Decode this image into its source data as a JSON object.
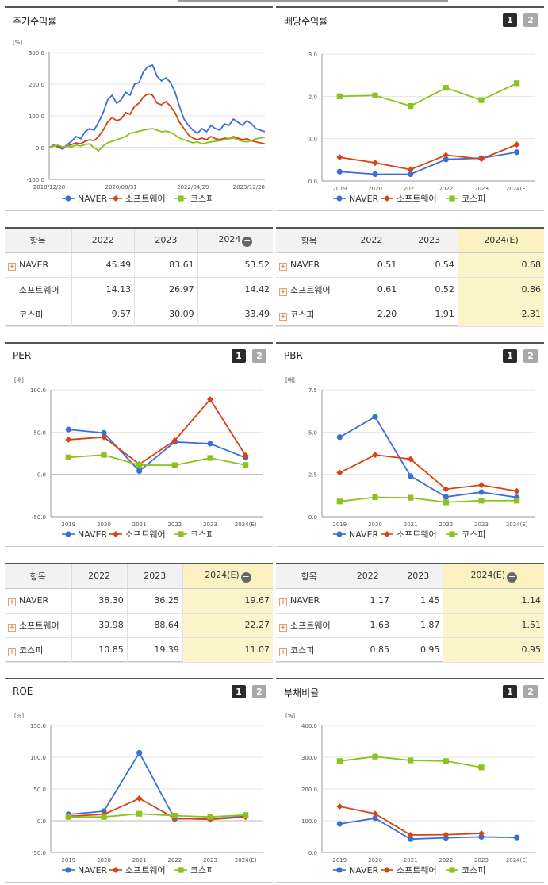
{
  "legend": [
    "NAVER",
    "소프트웨어",
    "코스피"
  ],
  "colors": {
    "naver": "#3a6fd8",
    "software": "#d84315",
    "kospi": "#8cc21f"
  },
  "stock_return": {
    "title": "주가수익률",
    "chart_data": {
      "type": "line",
      "unit": "[%]",
      "ylim": [
        -100,
        300
      ],
      "yticks": [
        "300.0",
        "200.0",
        "100.0",
        "0.0",
        "-100.0"
      ],
      "xticks": [
        "2018/12/28",
        "2020/08/31",
        "2022/04/29",
        "2023/12/28"
      ],
      "series": [
        {
          "name": "NAVER",
          "values": [
            0,
            8,
            2,
            -5,
            10,
            20,
            35,
            28,
            50,
            60,
            55,
            80,
            110,
            150,
            165,
            140,
            150,
            175,
            165,
            200,
            205,
            240,
            255,
            260,
            225,
            210,
            220,
            205,
            175,
            130,
            90,
            70,
            55,
            45,
            60,
            50,
            70,
            60,
            55,
            75,
            70,
            90,
            80,
            70,
            85,
            75,
            60,
            55,
            50
          ]
        },
        {
          "name": "소프트웨어",
          "values": [
            0,
            6,
            4,
            0,
            5,
            10,
            15,
            12,
            20,
            25,
            22,
            35,
            55,
            80,
            95,
            85,
            90,
            110,
            105,
            130,
            140,
            160,
            170,
            165,
            140,
            135,
            145,
            130,
            110,
            80,
            60,
            40,
            30,
            25,
            30,
            25,
            35,
            28,
            25,
            30,
            28,
            35,
            30,
            25,
            28,
            22,
            18,
            15,
            12
          ]
        },
        {
          "name": "코스피",
          "values": [
            0,
            5,
            8,
            2,
            5,
            3,
            8,
            5,
            10,
            12,
            0,
            -10,
            5,
            15,
            20,
            25,
            30,
            35,
            45,
            48,
            52,
            55,
            58,
            60,
            55,
            50,
            52,
            48,
            40,
            30,
            25,
            20,
            15,
            18,
            12,
            15,
            18,
            20,
            22,
            25,
            28,
            30,
            25,
            20,
            18,
            22,
            28,
            30,
            33
          ]
        }
      ]
    }
  },
  "dividend": {
    "title": "배당수익률",
    "pager": [
      "1",
      "2"
    ],
    "chart_data": {
      "type": "line",
      "ylim": [
        0,
        3
      ],
      "yticks": [
        "3.0",
        "2.0",
        "1.0",
        "0.0"
      ],
      "categories": [
        "2019",
        "2020",
        "2021",
        "2022",
        "2023",
        "2024(E)"
      ],
      "series": [
        {
          "name": "NAVER",
          "values": [
            0.22,
            0.16,
            0.16,
            0.51,
            0.54,
            0.68
          ]
        },
        {
          "name": "소프트웨어",
          "values": [
            0.56,
            0.43,
            0.27,
            0.61,
            0.52,
            0.86
          ]
        },
        {
          "name": "코스피",
          "values": [
            2.0,
            2.02,
            1.77,
            2.2,
            1.91,
            2.31
          ]
        }
      ]
    }
  },
  "per": {
    "title": "PER",
    "pager": [
      "1",
      "2"
    ],
    "chart_data": {
      "type": "line",
      "unit": "[배]",
      "ylim": [
        -50,
        100
      ],
      "yticks": [
        "100.0",
        "50.0",
        "0.0",
        "-50.0"
      ],
      "categories": [
        "2019",
        "2020",
        "2021",
        "2022",
        "2023",
        "2024(E)"
      ],
      "series": [
        {
          "name": "NAVER",
          "values": [
            53,
            49,
            4,
            38.3,
            36.25,
            19.67
          ]
        },
        {
          "name": "소프트웨어",
          "values": [
            41,
            44,
            12,
            39.98,
            88.64,
            22.27
          ]
        },
        {
          "name": "코스피",
          "values": [
            20,
            23,
            11,
            10.85,
            19.39,
            11.07
          ]
        }
      ]
    }
  },
  "pbr": {
    "title": "PBR",
    "pager": [
      "1",
      "2"
    ],
    "chart_data": {
      "type": "line",
      "unit": "[배]",
      "ylim": [
        0,
        7.5
      ],
      "yticks": [
        "7.5",
        "5.0",
        "2.5",
        "0.0"
      ],
      "categories": [
        "2019",
        "2020",
        "2021",
        "2022",
        "2023",
        "2024(E)"
      ],
      "series": [
        {
          "name": "NAVER",
          "values": [
            4.7,
            5.9,
            2.4,
            1.17,
            1.45,
            1.14
          ]
        },
        {
          "name": "소프트웨어",
          "values": [
            2.6,
            3.65,
            3.4,
            1.63,
            1.87,
            1.51
          ]
        },
        {
          "name": "코스피",
          "values": [
            0.9,
            1.15,
            1.12,
            0.85,
            0.95,
            0.95
          ]
        }
      ]
    }
  },
  "roe": {
    "title": "ROE",
    "pager": [
      "1",
      "2"
    ],
    "chart_data": {
      "type": "line",
      "unit": "[%]",
      "ylim": [
        -50,
        150
      ],
      "yticks": [
        "150.0",
        "100.0",
        "50.0",
        "0.0",
        "-50.0"
      ],
      "categories": [
        "2019",
        "2020",
        "2021",
        "2022",
        "2023",
        "2024(E)"
      ],
      "series": [
        {
          "name": "NAVER",
          "values": [
            10,
            15,
            107,
            3,
            3,
            7
          ]
        },
        {
          "name": "소프트웨어",
          "values": [
            7,
            10,
            35,
            4,
            2,
            6
          ]
        },
        {
          "name": "코스피",
          "values": [
            6,
            6,
            11,
            8,
            6,
            9
          ]
        }
      ]
    }
  },
  "debt": {
    "title": "부채비율",
    "pager": [
      "1",
      "2"
    ],
    "chart_data": {
      "type": "line",
      "unit": "[%]",
      "ylim": [
        0,
        400
      ],
      "yticks": [
        "400.0",
        "300.0",
        "200.0",
        "100.0",
        "0.0"
      ],
      "categories": [
        "2019",
        "2020",
        "2021",
        "2022",
        "2023",
        "2024(E)"
      ],
      "series": [
        {
          "name": "NAVER",
          "values": [
            90,
            108,
            42,
            46,
            49,
            47
          ]
        },
        {
          "name": "소프트웨어",
          "values": [
            145,
            122,
            55,
            56,
            60,
            null
          ]
        },
        {
          "name": "코스피",
          "values": [
            288,
            302,
            290,
            288,
            268,
            null
          ]
        }
      ]
    }
  },
  "tables": {
    "stock_return": {
      "headers": [
        "항목",
        "2022",
        "2023",
        "2024"
      ],
      "rows": [
        {
          "name": "NAVER",
          "vals": [
            "45.49",
            "83.61",
            "53.52"
          ]
        },
        {
          "name": "소프트웨어",
          "vals": [
            "14.13",
            "26.97",
            "14.42"
          ]
        },
        {
          "name": "코스피",
          "vals": [
            "9.57",
            "30.09",
            "33.49"
          ]
        }
      ]
    },
    "dividend": {
      "headers": [
        "항목",
        "2022",
        "2023",
        "2024(E)"
      ],
      "rows": [
        {
          "name": "NAVER",
          "vals": [
            "0.51",
            "0.54",
            "0.68"
          ]
        },
        {
          "name": "소프트웨어",
          "vals": [
            "0.61",
            "0.52",
            "0.86"
          ]
        },
        {
          "name": "코스피",
          "vals": [
            "2.20",
            "1.91",
            "2.31"
          ]
        }
      ]
    },
    "per": {
      "headers": [
        "항목",
        "2022",
        "2023",
        "2024(E)"
      ],
      "rows": [
        {
          "name": "NAVER",
          "vals": [
            "38.30",
            "36.25",
            "19.67"
          ]
        },
        {
          "name": "소프트웨어",
          "vals": [
            "39.98",
            "88.64",
            "22.27"
          ]
        },
        {
          "name": "코스피",
          "vals": [
            "10.85",
            "19.39",
            "11.07"
          ]
        }
      ]
    },
    "pbr": {
      "headers": [
        "항목",
        "2022",
        "2023",
        "2024(E)"
      ],
      "rows": [
        {
          "name": "NAVER",
          "vals": [
            "1.17",
            "1.45",
            "1.14"
          ]
        },
        {
          "name": "소프트웨어",
          "vals": [
            "1.63",
            "1.87",
            "1.51"
          ]
        },
        {
          "name": "코스피",
          "vals": [
            "0.85",
            "0.95",
            "0.95"
          ]
        }
      ]
    }
  }
}
